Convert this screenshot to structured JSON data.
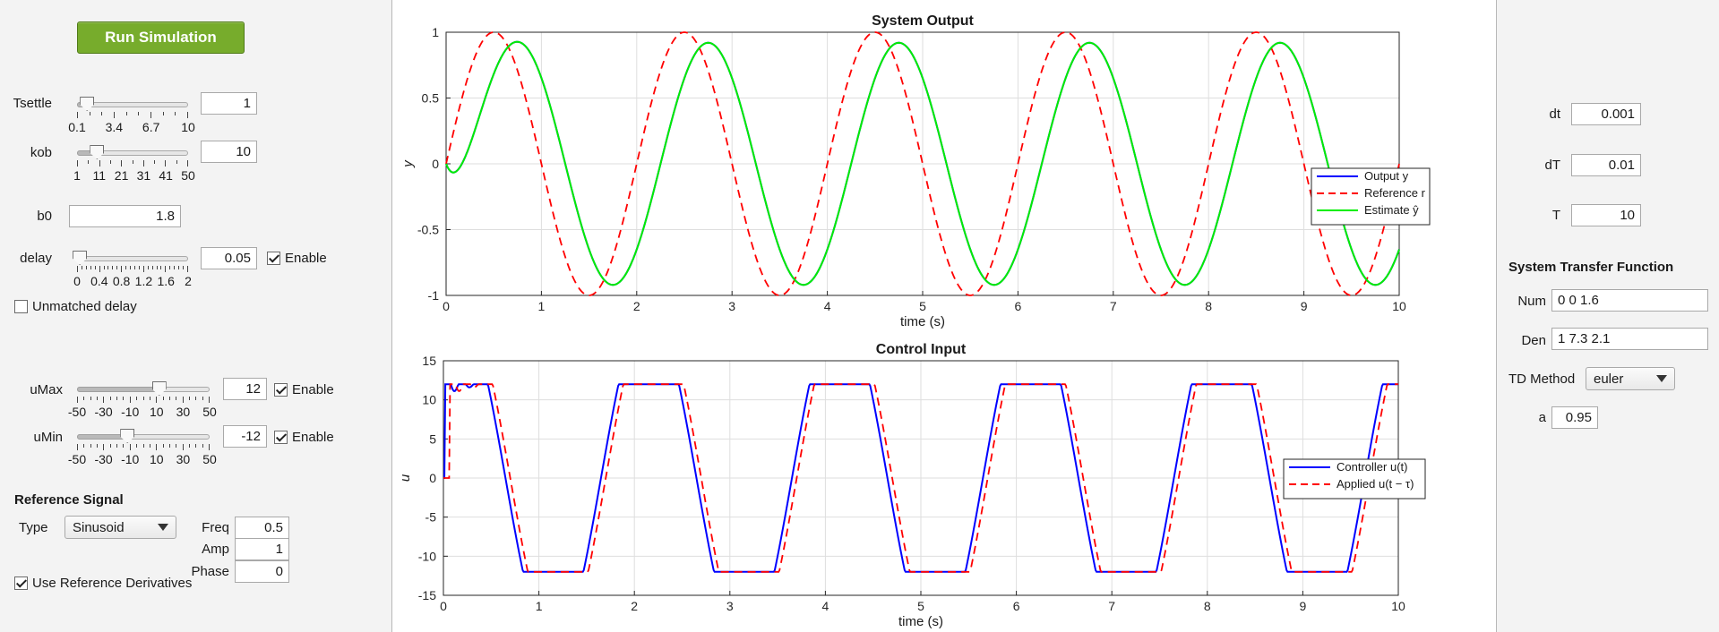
{
  "left": {
    "run_button": "Run Simulation",
    "tsettle": {
      "label": "Tsettle",
      "value": "1",
      "slider_fraction": 0.09,
      "ticks": [
        "0.1",
        "3.4",
        "6.7",
        "10"
      ]
    },
    "kob": {
      "label": "kob",
      "value": "10",
      "slider_fraction": 0.18,
      "ticks": [
        "1",
        "11",
        "21",
        "31",
        "41",
        "50"
      ]
    },
    "b0": {
      "label": "b0",
      "value": "1.8"
    },
    "delay": {
      "label": "delay",
      "value": "0.05",
      "slider_fraction": 0.025,
      "enable_label": "Enable",
      "enable_checked": true,
      "ticks": [
        "0",
        "0.4",
        "0.8",
        "1.2",
        "1.6",
        "2"
      ]
    },
    "unmatched_delay": {
      "label": "Unmatched delay",
      "checked": false
    },
    "umax": {
      "label": "uMax",
      "value": "12",
      "slider_fraction": 0.62,
      "enable_label": "Enable",
      "enable_checked": true,
      "ticks": [
        "-50",
        "-30",
        "-10",
        "10",
        "30",
        "50"
      ]
    },
    "umin": {
      "label": "uMin",
      "value": "-12",
      "slider_fraction": 0.38,
      "enable_label": "Enable",
      "enable_checked": true,
      "ticks": [
        "-50",
        "-30",
        "-10",
        "10",
        "30",
        "50"
      ]
    },
    "reference": {
      "title": "Reference Signal",
      "type_label": "Type",
      "type_value": "Sinusoid",
      "freq_label": "Freq",
      "freq_value": "0.5",
      "amp_label": "Amp",
      "amp_value": "1",
      "phase_label": "Phase",
      "phase_value": "0",
      "use_derivatives_label": "Use Reference Derivatives",
      "use_derivatives_checked": true
    }
  },
  "right": {
    "dt_label": "dt",
    "dt_value": "0.001",
    "dT_label": "dT",
    "dT_value": "0.01",
    "T_label": "T",
    "T_value": "10",
    "tf_title": "System Transfer Function",
    "num_label": "Num",
    "num_value": "0 0 1.6",
    "den_label": "Den",
    "den_value": "1 7.3 2.1",
    "td_method_label": "TD Method",
    "td_method_value": "euler",
    "a_label": "a",
    "a_value": "0.95"
  },
  "chart_data": [
    {
      "type": "line",
      "title": "System Output",
      "xlabel": "time (s)",
      "ylabel": "y",
      "xlim": [
        0,
        10
      ],
      "ylim": [
        -1,
        1
      ],
      "xticks": [
        "0",
        "1",
        "2",
        "3",
        "4",
        "5",
        "6",
        "7",
        "8",
        "9",
        "10"
      ],
      "yticks": [
        "-1",
        "-0.5",
        "0",
        "0.5",
        "1"
      ],
      "grid": true,
      "legend_placement": "right",
      "series": [
        {
          "name": "Output y",
          "color": "#0000ff",
          "style": "solid",
          "amplitude": 0.92,
          "frequency_hz": 0.5,
          "lag_s": 0.25
        },
        {
          "name": "Reference r",
          "color": "#ff0000",
          "style": "dashed",
          "amplitude": 1.0,
          "frequency_hz": 0.5,
          "lag_s": 0.0
        },
        {
          "name": "Estimate ŷ",
          "color": "#00ee00",
          "style": "solid",
          "amplitude": 0.92,
          "frequency_hz": 0.5,
          "lag_s": 0.25
        }
      ]
    },
    {
      "type": "line",
      "title": "Control Input",
      "xlabel": "time (s)",
      "ylabel": "u",
      "xlim": [
        0,
        10
      ],
      "ylim": [
        -15,
        15
      ],
      "xticks": [
        "0",
        "1",
        "2",
        "3",
        "4",
        "5",
        "6",
        "7",
        "8",
        "9",
        "10"
      ],
      "yticks": [
        "-15",
        "-10",
        "-5",
        "0",
        "5",
        "10",
        "15"
      ],
      "grid": true,
      "legend_placement": "right",
      "saturation": [
        -12,
        12
      ],
      "series": [
        {
          "name": "Controller u(t)",
          "color": "#0000ff",
          "style": "solid",
          "lag_s": 0.0
        },
        {
          "name": "Applied u(t − τ)",
          "color": "#ff0000",
          "style": "dashed",
          "lag_s": 0.05
        }
      ]
    }
  ]
}
